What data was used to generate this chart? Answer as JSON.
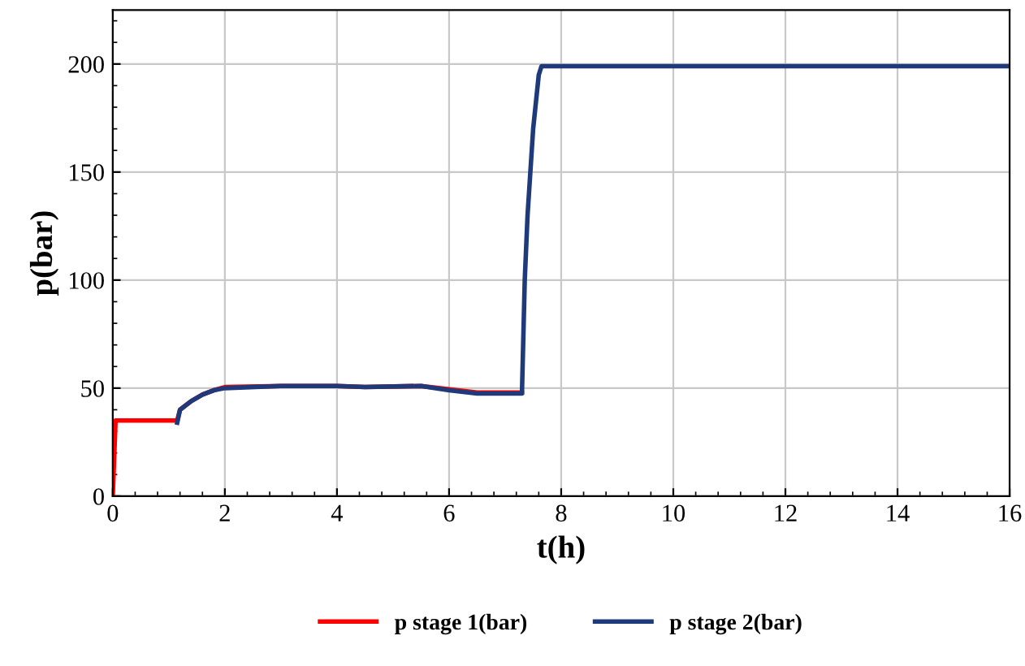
{
  "chart_data": {
    "type": "line",
    "xlabel": "t(h)",
    "ylabel": "p(bar)",
    "xlim": [
      0,
      16
    ],
    "ylim": [
      0,
      225
    ],
    "xticks": [
      0,
      2,
      4,
      6,
      8,
      10,
      12,
      14,
      16
    ],
    "yticks": [
      0,
      50,
      100,
      150,
      200
    ],
    "grid": true,
    "legend": "bottom",
    "line_style": "solid",
    "series": [
      {
        "name": "p stage 1(bar)",
        "color": "#ff0000",
        "x": [
          0,
          0.05,
          1.15,
          1.2,
          1.4,
          1.6,
          1.8,
          2,
          3,
          4,
          4.5,
          5.5,
          6,
          6.5,
          7.3
        ],
        "values": [
          0,
          35,
          35,
          40,
          44,
          47,
          49,
          50.5,
          51,
          51,
          50.5,
          51,
          49.5,
          48,
          48
        ]
      },
      {
        "name": "p stage 2(bar)",
        "color": "#1f3a7a",
        "x": [
          1.15,
          1.2,
          1.4,
          1.6,
          1.8,
          2,
          3,
          4,
          4.5,
          5.5,
          6,
          6.5,
          7.3,
          7.35,
          7.4,
          7.5,
          7.6,
          7.65,
          16
        ],
        "values": [
          34,
          40,
          44,
          47,
          49,
          50,
          51,
          51,
          50.5,
          51,
          49,
          47.5,
          47.5,
          100,
          130,
          170,
          195,
          199,
          199
        ]
      }
    ]
  }
}
